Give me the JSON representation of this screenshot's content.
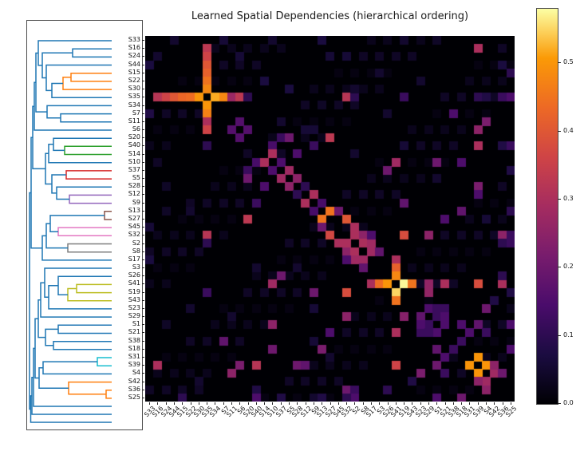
{
  "title": "Learned Spatial Dependencies (hierarchical ordering)",
  "chart_data": {
    "type": "heatmap",
    "title": "Learned Spatial Dependencies (hierarchical ordering)",
    "ordered_labels": [
      "S33",
      "S16",
      "S24",
      "S44",
      "S15",
      "S22",
      "S30",
      "S35",
      "S34",
      "S7",
      "S11",
      "S6",
      "S20",
      "S40",
      "S14",
      "S10",
      "S37",
      "S5",
      "S28",
      "S12",
      "S9",
      "S13",
      "S27",
      "S45",
      "S32",
      "S2",
      "S8",
      "S17",
      "S3",
      "S26",
      "S41",
      "S19",
      "S43",
      "S23",
      "S29",
      "S1",
      "S21",
      "S38",
      "S18",
      "S31",
      "S39",
      "S4",
      "S42",
      "S36",
      "S25"
    ],
    "colormap": "inferno",
    "vmin": 0.0,
    "vmax": 0.58,
    "colorbar_ticks": [
      "0.0",
      "0.1",
      "0.2",
      "0.3",
      "0.4",
      "0.5"
    ],
    "colormap_anchors": [
      [
        0,
        "#000004"
      ],
      [
        0.125,
        "#1b0c41"
      ],
      [
        0.25,
        "#4a0c6b"
      ],
      [
        0.375,
        "#781c6d"
      ],
      [
        0.5,
        "#a52c60"
      ],
      [
        0.625,
        "#cf4446"
      ],
      [
        0.75,
        "#ed6925"
      ],
      [
        0.875,
        "#fb9a06"
      ],
      [
        1,
        "#fcffa4"
      ]
    ],
    "cells": [
      [
        7,
        1,
        0.32
      ],
      [
        7,
        2,
        0.36
      ],
      [
        7,
        3,
        0.4
      ],
      [
        7,
        4,
        0.43
      ],
      [
        7,
        5,
        0.44
      ],
      [
        7,
        6,
        0.5
      ],
      [
        7,
        8,
        0.52
      ],
      [
        7,
        9,
        0.48
      ],
      [
        7,
        10,
        0.27
      ],
      [
        7,
        11,
        0.33
      ],
      [
        7,
        12,
        0.1
      ],
      [
        7,
        24,
        0.32
      ],
      [
        7,
        25,
        0.1
      ],
      [
        7,
        31,
        0.12
      ],
      [
        7,
        40,
        0.1
      ],
      [
        7,
        41,
        0.08
      ],
      [
        7,
        43,
        0.12
      ],
      [
        7,
        44,
        0.15
      ],
      [
        1,
        7,
        0.33
      ],
      [
        2,
        7,
        0.36
      ],
      [
        3,
        7,
        0.4
      ],
      [
        4,
        7,
        0.42
      ],
      [
        5,
        7,
        0.45
      ],
      [
        6,
        7,
        0.48
      ],
      [
        8,
        7,
        0.5
      ],
      [
        9,
        7,
        0.47
      ],
      [
        10,
        7,
        0.3
      ],
      [
        11,
        7,
        0.36
      ],
      [
        13,
        7,
        0.1
      ],
      [
        24,
        7,
        0.32
      ],
      [
        25,
        7,
        0.1
      ],
      [
        31,
        7,
        0.12
      ],
      [
        10,
        11,
        0.16
      ],
      [
        11,
        10,
        0.16
      ],
      [
        11,
        12,
        0.16
      ],
      [
        12,
        11,
        0.16
      ],
      [
        12,
        16,
        0.12
      ],
      [
        16,
        12,
        0.12
      ],
      [
        12,
        17,
        0.2
      ],
      [
        17,
        12,
        0.2
      ],
      [
        12,
        22,
        0.33
      ],
      [
        22,
        12,
        0.33
      ],
      [
        13,
        15,
        0.14
      ],
      [
        15,
        13,
        0.14
      ],
      [
        13,
        20,
        0.12
      ],
      [
        20,
        13,
        0.12
      ],
      [
        14,
        15,
        0.3
      ],
      [
        15,
        14,
        0.3
      ],
      [
        14,
        18,
        0.15
      ],
      [
        18,
        14,
        0.15
      ],
      [
        15,
        16,
        0.15
      ],
      [
        16,
        15,
        0.15
      ],
      [
        16,
        17,
        0.28
      ],
      [
        17,
        16,
        0.28
      ],
      [
        17,
        18,
        0.25
      ],
      [
        18,
        17,
        0.25
      ],
      [
        18,
        19,
        0.1
      ],
      [
        19,
        18,
        0.1
      ],
      [
        19,
        20,
        0.3
      ],
      [
        20,
        19,
        0.3
      ],
      [
        20,
        21,
        0.14
      ],
      [
        21,
        20,
        0.14
      ],
      [
        21,
        22,
        0.45
      ],
      [
        22,
        21,
        0.45
      ],
      [
        21,
        23,
        0.2
      ],
      [
        23,
        21,
        0.2
      ],
      [
        22,
        24,
        0.4
      ],
      [
        24,
        22,
        0.37
      ],
      [
        23,
        25,
        0.3
      ],
      [
        25,
        23,
        0.3
      ],
      [
        24,
        25,
        0.3
      ],
      [
        25,
        24,
        0.3
      ],
      [
        24,
        26,
        0.25
      ],
      [
        26,
        24,
        0.25
      ],
      [
        25,
        26,
        0.3
      ],
      [
        26,
        25,
        0.3
      ],
      [
        25,
        27,
        0.28
      ],
      [
        27,
        25,
        0.28
      ],
      [
        26,
        27,
        0.28
      ],
      [
        27,
        26,
        0.28
      ],
      [
        26,
        28,
        0.18
      ],
      [
        28,
        26,
        0.18
      ],
      [
        24,
        27,
        0.15
      ],
      [
        27,
        24,
        0.15
      ],
      [
        16,
        29,
        0.2
      ],
      [
        29,
        16,
        0.2
      ],
      [
        30,
        27,
        0.3
      ],
      [
        30,
        28,
        0.44
      ],
      [
        30,
        29,
        0.5
      ],
      [
        30,
        31,
        0.575
      ],
      [
        30,
        32,
        0.45
      ],
      [
        30,
        34,
        0.26
      ],
      [
        30,
        36,
        0.3
      ],
      [
        30,
        40,
        0.38
      ],
      [
        30,
        43,
        0.3
      ],
      [
        27,
        30,
        0.3
      ],
      [
        28,
        30,
        0.42
      ],
      [
        29,
        30,
        0.48
      ],
      [
        31,
        30,
        0.55
      ],
      [
        32,
        30,
        0.45
      ],
      [
        36,
        30,
        0.3
      ],
      [
        40,
        30,
        0.36
      ],
      [
        15,
        30,
        0.28
      ],
      [
        30,
        15,
        0.28
      ],
      [
        24,
        31,
        0.38
      ],
      [
        31,
        24,
        0.38
      ],
      [
        31,
        34,
        0.26
      ],
      [
        34,
        31,
        0.24
      ],
      [
        20,
        31,
        0.18
      ],
      [
        31,
        20,
        0.2
      ],
      [
        24,
        34,
        0.25
      ],
      [
        34,
        24,
        0.25
      ],
      [
        24,
        43,
        0.25
      ],
      [
        43,
        24,
        0.2
      ],
      [
        15,
        35,
        0.2
      ],
      [
        35,
        15,
        0.25
      ],
      [
        15,
        38,
        0.15
      ],
      [
        38,
        15,
        0.2
      ],
      [
        18,
        40,
        0.22
      ],
      [
        40,
        18,
        0.2
      ],
      [
        19,
        40,
        0.15
      ],
      [
        40,
        19,
        0.18
      ],
      [
        21,
        38,
        0.18
      ],
      [
        38,
        21,
        0.22
      ],
      [
        22,
        36,
        0.15
      ],
      [
        36,
        22,
        0.15
      ],
      [
        13,
        40,
        0.3
      ],
      [
        40,
        13,
        0.32
      ],
      [
        11,
        40,
        0.25
      ],
      [
        40,
        11,
        0.22
      ],
      [
        10,
        41,
        0.22
      ],
      [
        41,
        10,
        0.25
      ],
      [
        9,
        37,
        0.15
      ],
      [
        37,
        9,
        0.18
      ],
      [
        1,
        40,
        0.3
      ],
      [
        40,
        1,
        0.3
      ],
      [
        33,
        34,
        0.15
      ],
      [
        34,
        33,
        0.18
      ],
      [
        33,
        36,
        0.12
      ],
      [
        36,
        33,
        0.12
      ],
      [
        34,
        35,
        0.12
      ],
      [
        35,
        34,
        0.12
      ],
      [
        35,
        36,
        0.15
      ],
      [
        36,
        35,
        0.15
      ],
      [
        35,
        33,
        0.15
      ],
      [
        33,
        35,
        0.12
      ],
      [
        34,
        36,
        0.15
      ],
      [
        36,
        34,
        0.12
      ],
      [
        39,
        40,
        0.5
      ],
      [
        40,
        39,
        0.5
      ],
      [
        40,
        41,
        0.5
      ],
      [
        41,
        40,
        0.5
      ],
      [
        41,
        42,
        0.28
      ],
      [
        42,
        41,
        0.28
      ],
      [
        42,
        40,
        0.25
      ],
      [
        40,
        42,
        0.25
      ],
      [
        43,
        41,
        0.25
      ],
      [
        41,
        43,
        0.2
      ],
      [
        44,
        38,
        0.2
      ],
      [
        38,
        44,
        0.15
      ],
      [
        41,
        33,
        0.22
      ],
      [
        33,
        41,
        0.2
      ],
      [
        42,
        32,
        0.08
      ],
      [
        32,
        42,
        0.08
      ],
      [
        40,
        35,
        0.2
      ],
      [
        35,
        40,
        0.18
      ],
      [
        36,
        39,
        0.15
      ],
      [
        39,
        36,
        0.15
      ],
      [
        37,
        38,
        0.12
      ],
      [
        38,
        37,
        0.12
      ],
      [
        38,
        35,
        0.18
      ],
      [
        35,
        38,
        0.15
      ],
      [
        35,
        44,
        0.15
      ],
      [
        44,
        35,
        0.15
      ],
      [
        36,
        41,
        0.12
      ],
      [
        41,
        36,
        0.12
      ],
      [
        43,
        25,
        0.12
      ],
      [
        25,
        43,
        0.1
      ],
      [
        44,
        25,
        0.15
      ],
      [
        25,
        44,
        0.12
      ],
      [
        44,
        4,
        0.1
      ],
      [
        4,
        44,
        0.1
      ],
      [
        43,
        13,
        0.08
      ],
      [
        13,
        43,
        0.08
      ],
      [
        44,
        13,
        0.15
      ],
      [
        13,
        44,
        0.12
      ],
      [
        29,
        43,
        0.1
      ],
      [
        43,
        29,
        0.1
      ],
      [
        0,
        3,
        0.05
      ],
      [
        0,
        9,
        0.06
      ],
      [
        0,
        15,
        0.05
      ],
      [
        0,
        21,
        0.07
      ],
      [
        0,
        31,
        0.05
      ],
      [
        0,
        35,
        0.04
      ],
      [
        2,
        1,
        0.05
      ],
      [
        2,
        11,
        0.06
      ],
      [
        2,
        22,
        0.06
      ],
      [
        2,
        24,
        0.06
      ],
      [
        3,
        0,
        0.07
      ],
      [
        3,
        43,
        0.07
      ],
      [
        5,
        14,
        0.07
      ],
      [
        6,
        17,
        0.07
      ],
      [
        9,
        0,
        0.08
      ],
      [
        4,
        28,
        0.05
      ],
      [
        5,
        33,
        0.05
      ],
      [
        8,
        21,
        0.04
      ],
      [
        10,
        16,
        0.05
      ],
      [
        11,
        19,
        0.06
      ],
      [
        11,
        20,
        0.06
      ],
      [
        14,
        25,
        0.05
      ],
      [
        18,
        2,
        0.04
      ],
      [
        21,
        2,
        0.04
      ],
      [
        21,
        5,
        0.05
      ],
      [
        23,
        0,
        0.06
      ],
      [
        27,
        0,
        0.07
      ],
      [
        28,
        18,
        0.05
      ],
      [
        31,
        44,
        0.08
      ],
      [
        33,
        5,
        0.05
      ],
      [
        34,
        10,
        0.05
      ],
      [
        35,
        2,
        0.04
      ],
      [
        37,
        20,
        0.06
      ],
      [
        39,
        22,
        0.05
      ],
      [
        42,
        6,
        0.05
      ],
      [
        44,
        20,
        0.05
      ],
      [
        13,
        31,
        0.06
      ],
      [
        17,
        35,
        0.05
      ],
      [
        22,
        41,
        0.06
      ],
      [
        28,
        13,
        0.05
      ],
      [
        33,
        20,
        0.06
      ],
      [
        6,
        25,
        0.05
      ],
      [
        9,
        29,
        0.05
      ],
      [
        16,
        44,
        0.08
      ],
      [
        44,
        16,
        0.08
      ],
      [
        24,
        44,
        0.12
      ],
      [
        44,
        24,
        0.1
      ],
      [
        21,
        44,
        0.1
      ],
      [
        44,
        21,
        0.08
      ]
    ],
    "dendrogram": {
      "palette": [
        "#1f77b4",
        "#ff7f0e",
        "#2ca02c",
        "#d62728",
        "#9467bd",
        "#8c564b",
        "#e377c2",
        "#7f7f7f",
        "#bcbd22",
        "#17becf"
      ],
      "brackets": [
        [
          1,
          55,
          65.7,
          75.9,
          106,
          106
        ],
        [
          1,
          45,
          70.8,
          86.1,
          55,
          106
        ],
        [
          0,
          31,
          78.5,
          96.3,
          45,
          106
        ],
        [
          0,
          24,
          55.5,
          87.4,
          106,
          31
        ],
        [
          0,
          57,
          35.2,
          45.4,
          106,
          106
        ],
        [
          0,
          19,
          40.3,
          71.5,
          57,
          24
        ],
        [
          0,
          14,
          25,
          55.9,
          106,
          19
        ],
        [
          0,
          42,
          116.6,
          126.8,
          106,
          106
        ],
        [
          0,
          25,
          106.4,
          121.7,
          106,
          42
        ],
        [
          0,
          11,
          40.5,
          114.1,
          14,
          25
        ],
        [
          0,
          9,
          77.3,
          137,
          11,
          106
        ],
        [
          2,
          47,
          157.3,
          167.5,
          106,
          106
        ],
        [
          0,
          33,
          147.2,
          162.4,
          106,
          47
        ],
        [
          0,
          27,
          154.8,
          177.7,
          33,
          106
        ],
        [
          3,
          49,
          187.9,
          198.1,
          106,
          106
        ],
        [
          4,
          53,
          218.4,
          228.6,
          106,
          106
        ],
        [
          0,
          37,
          208.2,
          223.5,
          106,
          53
        ],
        [
          0,
          31,
          193,
          215.9,
          49,
          37
        ],
        [
          0,
          23,
          166.3,
          204.5,
          27,
          31
        ],
        [
          5,
          97,
          238.8,
          249,
          106,
          106
        ],
        [
          6,
          39,
          259.1,
          269.3,
          106,
          106
        ],
        [
          0,
          29,
          243.9,
          264.2,
          97,
          39
        ],
        [
          7,
          51,
          279.5,
          289.7,
          106,
          106
        ],
        [
          0,
          24,
          254.1,
          284.6,
          29,
          51
        ],
        [
          0,
          19,
          269.4,
          299.9,
          24,
          106
        ],
        [
          8,
          62,
          330.4,
          340.6,
          106,
          106
        ],
        [
          8,
          51,
          335.5,
          350.8,
          62,
          106
        ],
        [
          0,
          39,
          320.2,
          343.2,
          106,
          51
        ],
        [
          0,
          27,
          331.7,
          360.9,
          39,
          106
        ],
        [
          0,
          22,
          310,
          346.3,
          106,
          27
        ],
        [
          0,
          17,
          328.2,
          371.1,
          22,
          106
        ],
        [
          0,
          39,
          381.3,
          391.5,
          106,
          106
        ],
        [
          0,
          33,
          401.7,
          411.8,
          106,
          106
        ],
        [
          0,
          23,
          386.4,
          406.8,
          39,
          33
        ],
        [
          0,
          14,
          349.7,
          396.6,
          17,
          23
        ],
        [
          9,
          88,
          422,
          432.2,
          106,
          106
        ],
        [
          0,
          20,
          427.1,
          442.4,
          88,
          106
        ],
        [
          1,
          99,
          462.7,
          472.9,
          106,
          106
        ],
        [
          1,
          52,
          452.6,
          467.8,
          106,
          99
        ],
        [
          0,
          15,
          434.8,
          460.2,
          20,
          52
        ],
        [
          0,
          7,
          107.2,
          185.4,
          9,
          23
        ],
        [
          0,
          5,
          146.3,
          284.7,
          7,
          19
        ],
        [
          0,
          10,
          373.2,
          447.5,
          14,
          15
        ],
        [
          0,
          8,
          410.4,
          483,
          10,
          106
        ],
        [
          0,
          6,
          446.7,
          493,
          8,
          106
        ],
        [
          0,
          4.5,
          469.9,
          503,
          6,
          106
        ],
        [
          0,
          3,
          215.5,
          486.5,
          5,
          4.5
        ]
      ]
    }
  }
}
